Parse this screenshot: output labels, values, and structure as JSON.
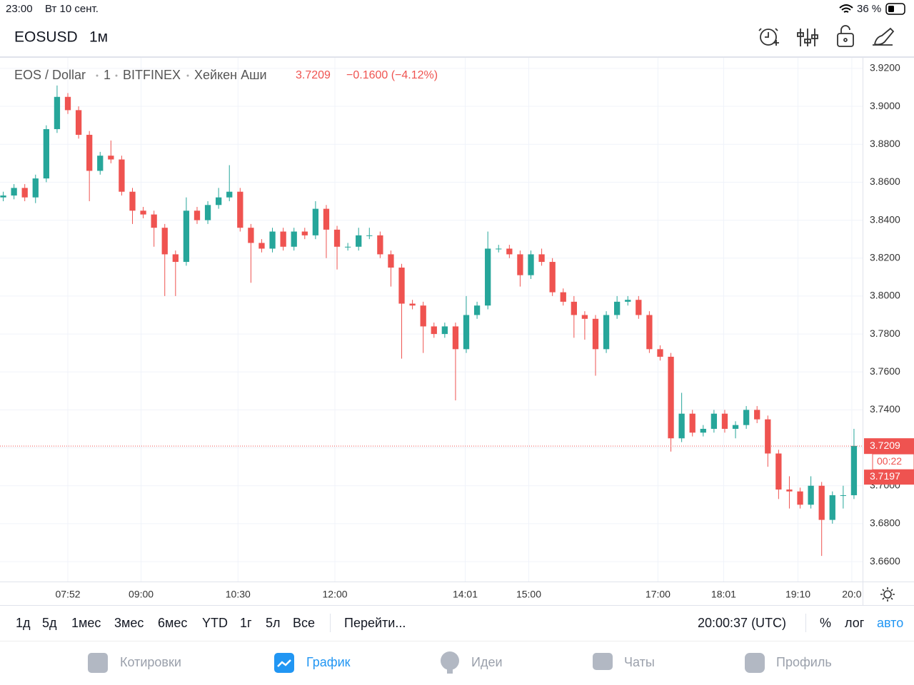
{
  "status_bar": {
    "time": "23:00",
    "date": "Вт 10 сент.",
    "battery": "36 %"
  },
  "header": {
    "symbol": "EOSUSD",
    "interval": "1м"
  },
  "chart_data": {
    "type": "candlestick",
    "symbol": "EOS / Dollar",
    "interval": "1",
    "exchange": "BITFINEX",
    "style": "Хейкен Аши",
    "change": "−0.1600 (−4.12%)",
    "price_line": 3.7209,
    "countdown": "00:22",
    "second_price": "3.7197",
    "up_color": "#26a69a",
    "down_color": "#ef5350",
    "grid": true,
    "x": [
      412,
      422,
      432,
      442,
      452,
      462,
      472,
      482,
      492,
      502,
      512,
      522,
      532,
      542,
      552,
      562,
      572,
      582,
      592,
      602,
      612,
      622,
      632,
      642,
      652,
      662,
      672,
      682,
      692,
      702,
      712,
      722,
      732,
      742,
      752,
      762,
      772,
      782,
      792,
      802,
      812,
      822,
      832,
      842,
      852,
      862,
      872,
      882,
      892,
      902,
      912,
      922,
      932,
      942,
      952,
      962,
      972,
      982,
      992,
      1002,
      1012,
      1022,
      1032,
      1042,
      1052,
      1062,
      1072,
      1082,
      1092,
      1102,
      1112,
      1122,
      1132,
      1142,
      1152,
      1162,
      1172,
      1182,
      1192,
      1202
    ],
    "open": [
      3.852,
      3.853,
      3.857,
      3.852,
      3.862,
      3.888,
      3.905,
      3.898,
      3.885,
      3.866,
      3.874,
      3.872,
      3.855,
      3.845,
      3.843,
      3.836,
      3.822,
      3.818,
      3.845,
      3.84,
      3.848,
      3.852,
      3.855,
      3.836,
      3.828,
      3.825,
      3.834,
      3.826,
      3.834,
      3.832,
      3.846,
      3.835,
      3.826,
      3.826,
      3.832,
      3.832,
      3.822,
      3.815,
      3.796,
      3.795,
      3.784,
      3.78,
      3.784,
      3.772,
      3.79,
      3.795,
      3.825,
      3.825,
      3.822,
      3.811,
      3.822,
      3.818,
      3.802,
      3.797,
      3.79,
      3.788,
      3.772,
      3.79,
      3.797,
      3.798,
      3.79,
      3.772,
      3.768,
      3.725,
      3.738,
      3.728,
      3.73,
      3.738,
      3.73,
      3.732,
      3.74,
      3.735,
      3.717,
      3.698,
      3.697,
      3.69,
      3.7,
      3.682,
      3.695,
      3.695
    ],
    "high": [
      3.855,
      3.859,
      3.859,
      3.864,
      3.89,
      3.911,
      3.907,
      3.9,
      3.887,
      3.876,
      3.882,
      3.874,
      3.857,
      3.847,
      3.845,
      3.838,
      3.824,
      3.852,
      3.847,
      3.85,
      3.857,
      3.869,
      3.857,
      3.838,
      3.83,
      3.836,
      3.836,
      3.836,
      3.836,
      3.85,
      3.848,
      3.837,
      3.828,
      3.836,
      3.836,
      3.834,
      3.824,
      3.817,
      3.798,
      3.797,
      3.786,
      3.786,
      3.786,
      3.8,
      3.797,
      3.834,
      3.827,
      3.827,
      3.824,
      3.824,
      3.825,
      3.82,
      3.804,
      3.8,
      3.792,
      3.79,
      3.792,
      3.8,
      3.8,
      3.8,
      3.792,
      3.774,
      3.77,
      3.749,
      3.74,
      3.732,
      3.74,
      3.74,
      3.734,
      3.742,
      3.742,
      3.737,
      3.719,
      3.705,
      3.699,
      3.705,
      3.702,
      3.697,
      3.7,
      3.73
    ],
    "low": [
      3.85,
      3.851,
      3.85,
      3.849,
      3.86,
      3.886,
      3.896,
      3.883,
      3.85,
      3.864,
      3.87,
      3.853,
      3.838,
      3.841,
      3.826,
      3.8,
      3.8,
      3.816,
      3.838,
      3.838,
      3.846,
      3.85,
      3.834,
      3.807,
      3.823,
      3.823,
      3.824,
      3.824,
      3.83,
      3.83,
      3.82,
      3.814,
      3.824,
      3.824,
      3.83,
      3.82,
      3.805,
      3.767,
      3.793,
      3.77,
      3.778,
      3.778,
      3.745,
      3.77,
      3.788,
      3.793,
      3.823,
      3.82,
      3.805,
      3.809,
      3.816,
      3.8,
      3.795,
      3.778,
      3.777,
      3.758,
      3.77,
      3.788,
      3.795,
      3.788,
      3.77,
      3.766,
      3.718,
      3.723,
      3.726,
      3.726,
      3.728,
      3.728,
      3.725,
      3.73,
      3.733,
      3.71,
      3.693,
      3.688,
      3.688,
      3.688,
      3.663,
      3.68,
      3.688,
      3.693
    ],
    "close": [
      3.853,
      3.857,
      3.852,
      3.862,
      3.888,
      3.905,
      3.898,
      3.885,
      3.866,
      3.874,
      3.872,
      3.855,
      3.845,
      3.843,
      3.836,
      3.822,
      3.818,
      3.845,
      3.84,
      3.848,
      3.852,
      3.855,
      3.836,
      3.828,
      3.825,
      3.834,
      3.826,
      3.834,
      3.832,
      3.846,
      3.835,
      3.826,
      3.826,
      3.832,
      3.832,
      3.822,
      3.815,
      3.796,
      3.795,
      3.784,
      3.78,
      3.784,
      3.772,
      3.79,
      3.795,
      3.825,
      3.825,
      3.822,
      3.811,
      3.822,
      3.818,
      3.802,
      3.797,
      3.79,
      3.788,
      3.772,
      3.79,
      3.797,
      3.798,
      3.79,
      3.772,
      3.768,
      3.725,
      3.738,
      3.728,
      3.73,
      3.738,
      3.73,
      3.732,
      3.74,
      3.735,
      3.717,
      3.698,
      3.697,
      3.69,
      3.7,
      3.682,
      3.695,
      3.695,
      3.721
    ],
    "xlim": [
      409,
      1210
    ],
    "ylim": [
      3.6495,
      3.9256
    ],
    "xticks": [
      {
        "value": 472,
        "label": "07:52"
      },
      {
        "value": 540,
        "label": "09:00"
      },
      {
        "value": 630,
        "label": "10:30"
      },
      {
        "value": 720,
        "label": "12:00"
      },
      {
        "value": 841,
        "label": "14:01"
      },
      {
        "value": 900,
        "label": "15:00"
      },
      {
        "value": 1020,
        "label": "17:00"
      },
      {
        "value": 1081,
        "label": "18:01"
      },
      {
        "value": 1150,
        "label": "19:10"
      },
      {
        "value": 1200,
        "label": "20:0"
      }
    ],
    "yticks": [
      {
        "value": 3.92,
        "label": "3.9200"
      },
      {
        "value": 3.9,
        "label": "3.9000"
      },
      {
        "value": 3.88,
        "label": "3.8800"
      },
      {
        "value": 3.86,
        "label": "3.8600"
      },
      {
        "value": 3.84,
        "label": "3.8400"
      },
      {
        "value": 3.82,
        "label": "3.8200"
      },
      {
        "value": 3.8,
        "label": "3.8000"
      },
      {
        "value": 3.78,
        "label": "3.7800"
      },
      {
        "value": 3.76,
        "label": "3.7600"
      },
      {
        "value": 3.74,
        "label": "3.7400"
      },
      {
        "value": 3.72,
        "label": "3.7200"
      },
      {
        "value": 3.7,
        "label": "3.7000"
      },
      {
        "value": 3.68,
        "label": "3.6800"
      },
      {
        "value": 3.66,
        "label": "3.6600"
      }
    ]
  },
  "toolbar": {
    "ranges": [
      "1д",
      "5д",
      "1мес",
      "3мес",
      "6мес",
      "YTD",
      "1г",
      "5л",
      "Все"
    ],
    "goto": "Перейти...",
    "clock": "20:00:37 (UTC)",
    "percent": "%",
    "log": "лог",
    "auto": "авто"
  },
  "tabs": [
    "Котировки",
    "График",
    "Идеи",
    "Чаты",
    "Профиль"
  ]
}
